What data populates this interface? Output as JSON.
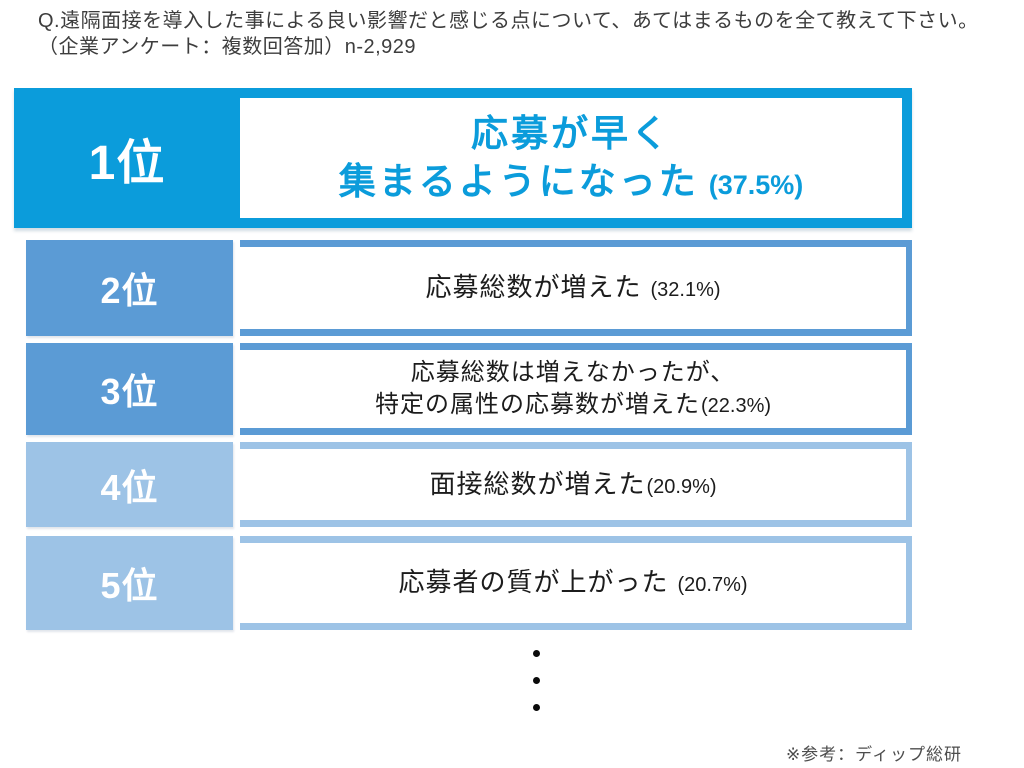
{
  "header": {
    "question": "Q.遠隔面接を導入した事による良い影響だと感じる点について、あてはまるものを全て教えて下さい。（企業アンケート：複数回答加）n-2,929"
  },
  "ranking": [
    {
      "rank_label": "1位",
      "lines": [
        "応募が早く",
        "集まるようになった"
      ],
      "pct": "(37.5%)"
    },
    {
      "rank_label": "2位",
      "lines": [
        "応募総数が増えた"
      ],
      "pct": "(32.1%)"
    },
    {
      "rank_label": "3位",
      "lines": [
        "応募総数は増えなかったが、",
        "特定の属性の応募数が増えた"
      ],
      "pct": "(22.3%)"
    },
    {
      "rank_label": "4位",
      "lines": [
        "面接総数が増えた"
      ],
      "pct": "(20.9%)"
    },
    {
      "rank_label": "5位",
      "lines": [
        "応募者の質が上がった"
      ],
      "pct": "(20.7%)"
    }
  ],
  "footer": {
    "source": "※参考：ディップ総研"
  },
  "colors": {
    "rank1_blue": "#0B9CDB",
    "rank2_3_blue": "#5B9BD5",
    "rank4_5_blue": "#9DC3E6",
    "rank1_text": "#0B9CDB",
    "body_text": "#1c1c1c"
  },
  "chart_data": {
    "type": "table",
    "title": "Q.遠隔面接を導入した事による良い影響だと感じる点について、あてはまるものを全て教えて下さい。（企業アンケート：複数回答加）n-2,929",
    "ranks": [
      "1位",
      "2位",
      "3位",
      "4位",
      "5位"
    ],
    "categories": [
      "応募が早く集まるようになった",
      "応募総数が増えた",
      "応募総数は増えなかったが、特定の属性の応募数が増えた",
      "面接総数が増えた",
      "応募者の質が上がった"
    ],
    "values": [
      37.5,
      32.1,
      22.3,
      20.9,
      20.7
    ],
    "unit": "%",
    "sample_note": "n-2,929",
    "source": "※参考：ディップ総研",
    "truncated_indicator": "vertical ellipsis (more items not shown)"
  }
}
